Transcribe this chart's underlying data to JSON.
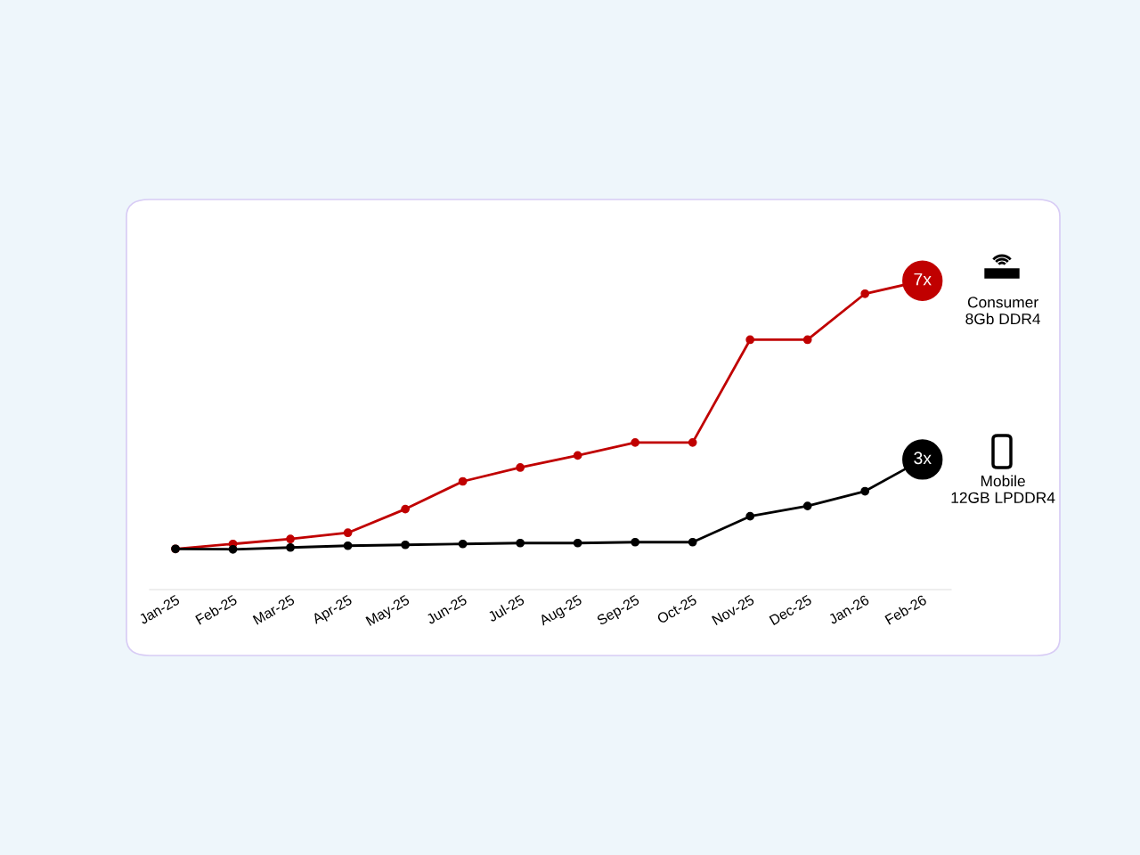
{
  "chart_data": {
    "type": "line",
    "categories": [
      "Jan-25",
      "Feb-25",
      "Mar-25",
      "Apr-25",
      "May-25",
      "Jun-25",
      "Jul-25",
      "Aug-25",
      "Sep-25",
      "Oct-25",
      "Nov-25",
      "Dec-25",
      "Jan-26",
      "Feb-26"
    ],
    "series": [
      {
        "name": "Consumer\n8Gb DDR4",
        "color": "#c00000",
        "values": [
          1,
          1.11,
          1.22,
          1.36,
          1.89,
          2.51,
          2.82,
          3.09,
          3.38,
          3.38,
          5.68,
          5.68,
          6.71,
          7
        ],
        "value_labels": [
          null,
          null,
          null,
          null,
          null,
          null,
          null,
          null,
          null,
          null,
          null,
          null,
          null,
          "7x"
        ]
      },
      {
        "name": "Mobile\n12GB LPDDR4",
        "color": "#000000",
        "values": [
          1,
          0.99,
          1.03,
          1.07,
          1.09,
          1.11,
          1.13,
          1.13,
          1.15,
          1.15,
          1.73,
          1.96,
          2.29,
          3
        ],
        "value_labels": [
          null,
          null,
          null,
          null,
          null,
          null,
          null,
          null,
          null,
          null,
          null,
          null,
          null,
          "3x"
        ]
      }
    ],
    "tick_labels": "x",
    "grid": false,
    "legend": "right",
    "marker": "circle",
    "line_style": "solid"
  }
}
